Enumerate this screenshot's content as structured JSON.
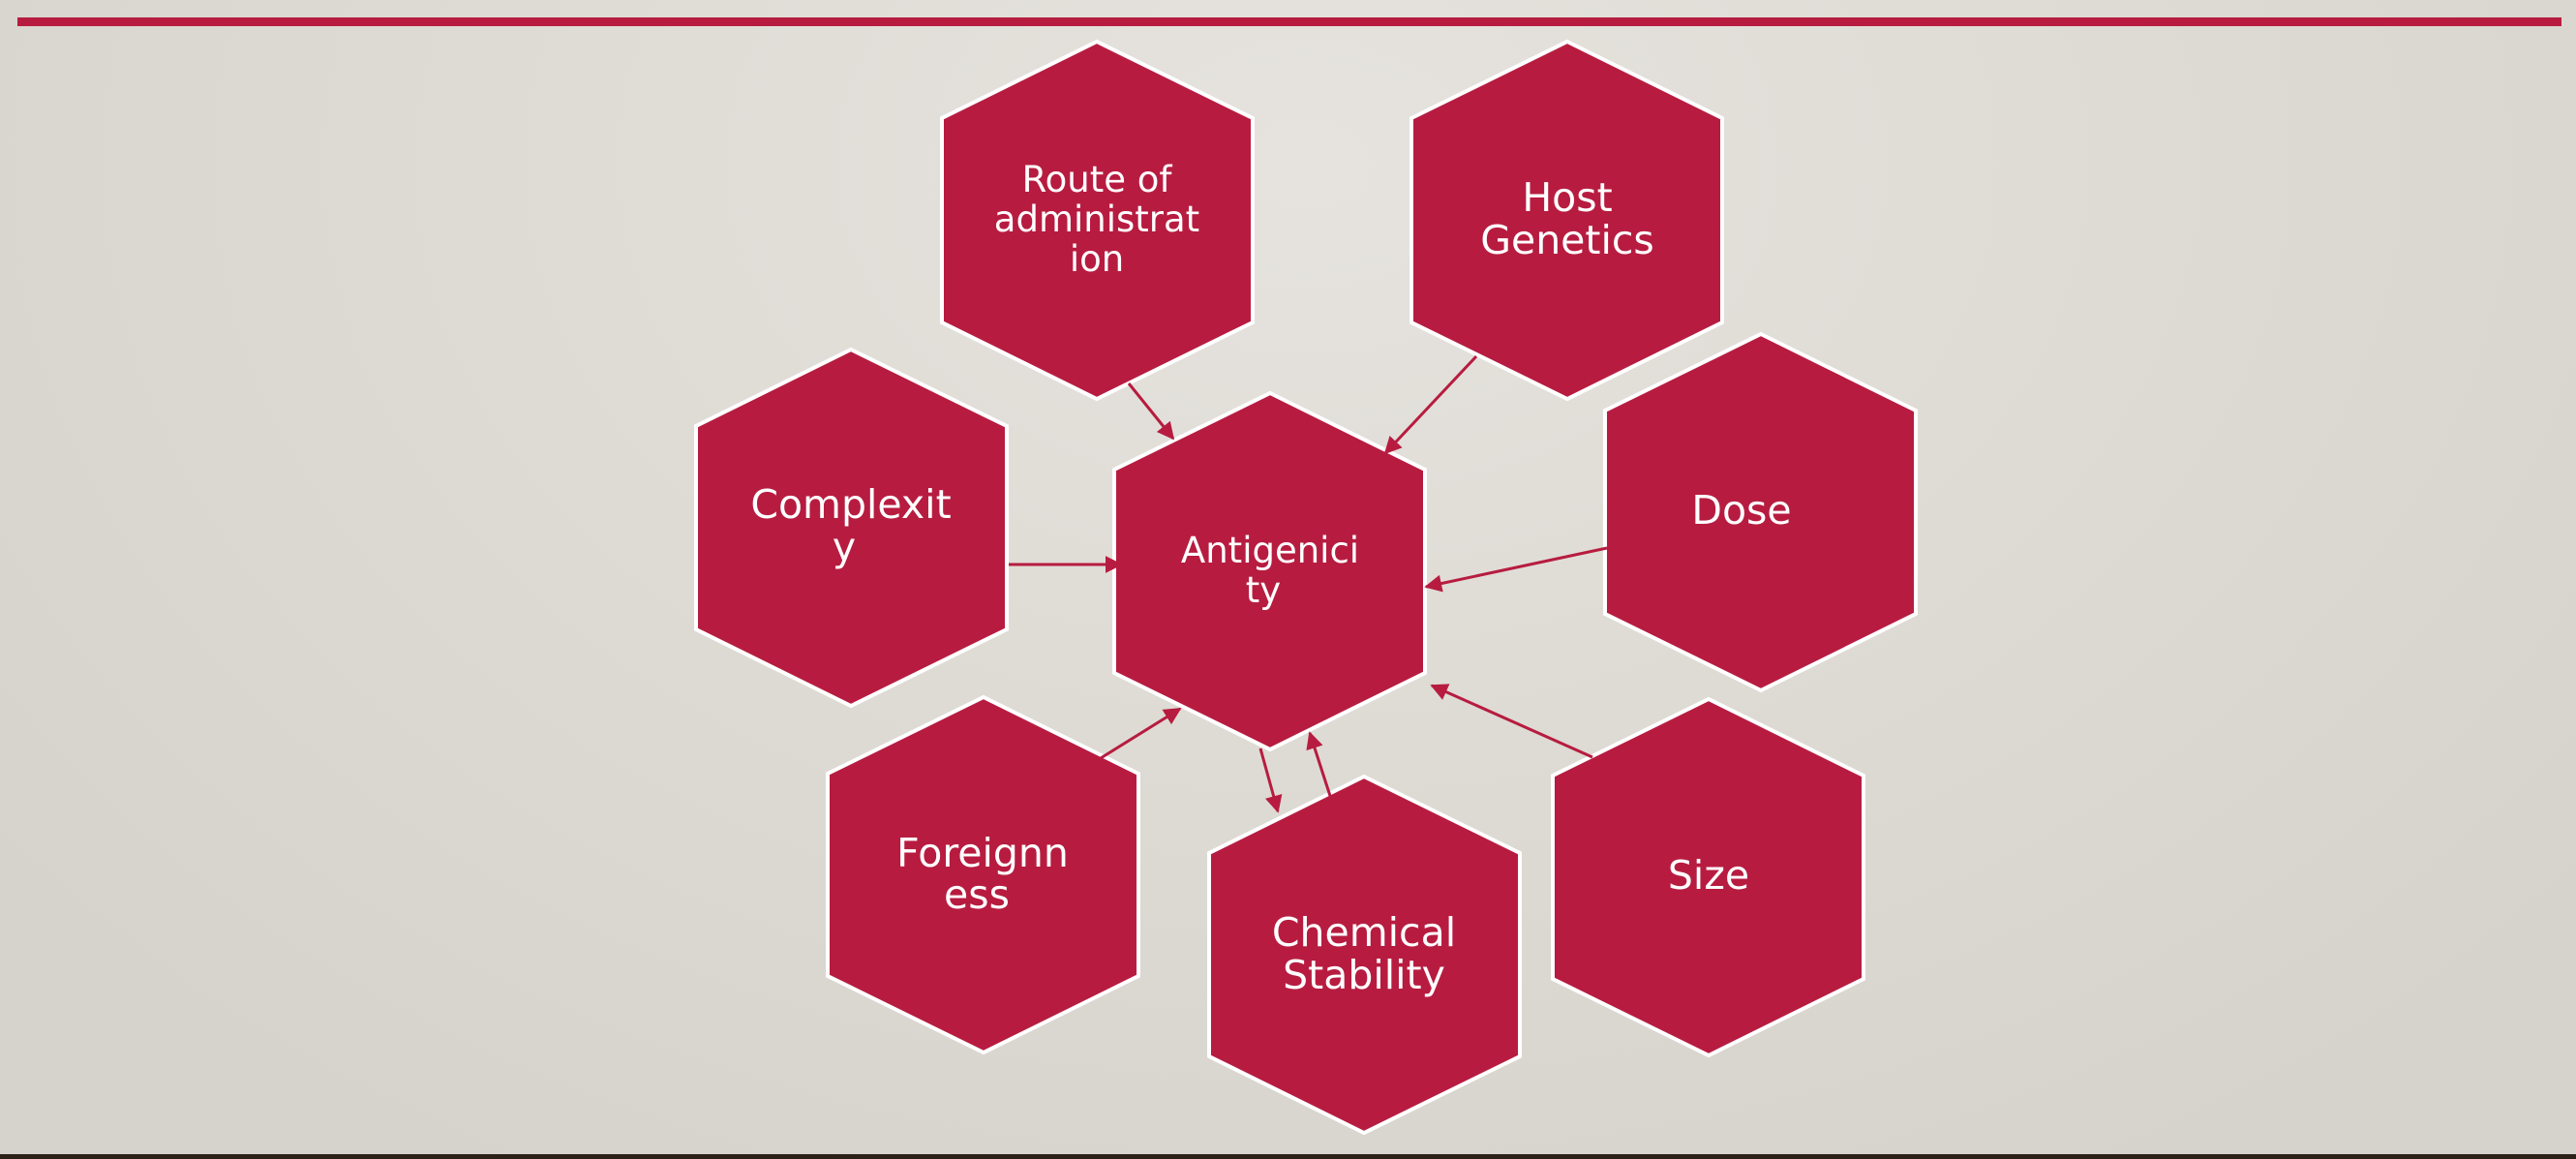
{
  "diagram": {
    "center": {
      "label_line1": "Antigenici",
      "label_line2": "ty"
    },
    "nodes": {
      "route": {
        "label_line1": "Route of",
        "label_line2": "administrat",
        "label_line3": "ion"
      },
      "host": {
        "label_line1": "Host",
        "label_line2": "Genetics"
      },
      "complexity": {
        "label_line1": "Complexit",
        "label_line2": "y"
      },
      "dose": {
        "label_line1": "Dose"
      },
      "foreignness": {
        "label_line1": "Foreignn",
        "label_line2": "ess"
      },
      "chemical": {
        "label_line1": "Chemical",
        "label_line2": "Stability"
      },
      "size": {
        "label_line1": "Size"
      }
    },
    "edges": [
      {
        "from": "Route of administration",
        "to": "Antigenicity"
      },
      {
        "from": "Host Genetics",
        "to": "Antigenicity"
      },
      {
        "from": "Complexity",
        "to": "Antigenicity"
      },
      {
        "from": "Dose",
        "to": "Antigenicity"
      },
      {
        "from": "Foreignness",
        "to": "Antigenicity"
      },
      {
        "from": "Antigenicity",
        "to": "Chemical Stability"
      },
      {
        "from": "Chemical Stability",
        "to": "Antigenicity"
      },
      {
        "from": "Size",
        "to": "Antigenicity"
      }
    ],
    "colors": {
      "hex_fill": "#b71c40",
      "hex_stroke": "#ffffff",
      "accent_rule": "#b71c40",
      "background": "#e2dfda"
    }
  }
}
